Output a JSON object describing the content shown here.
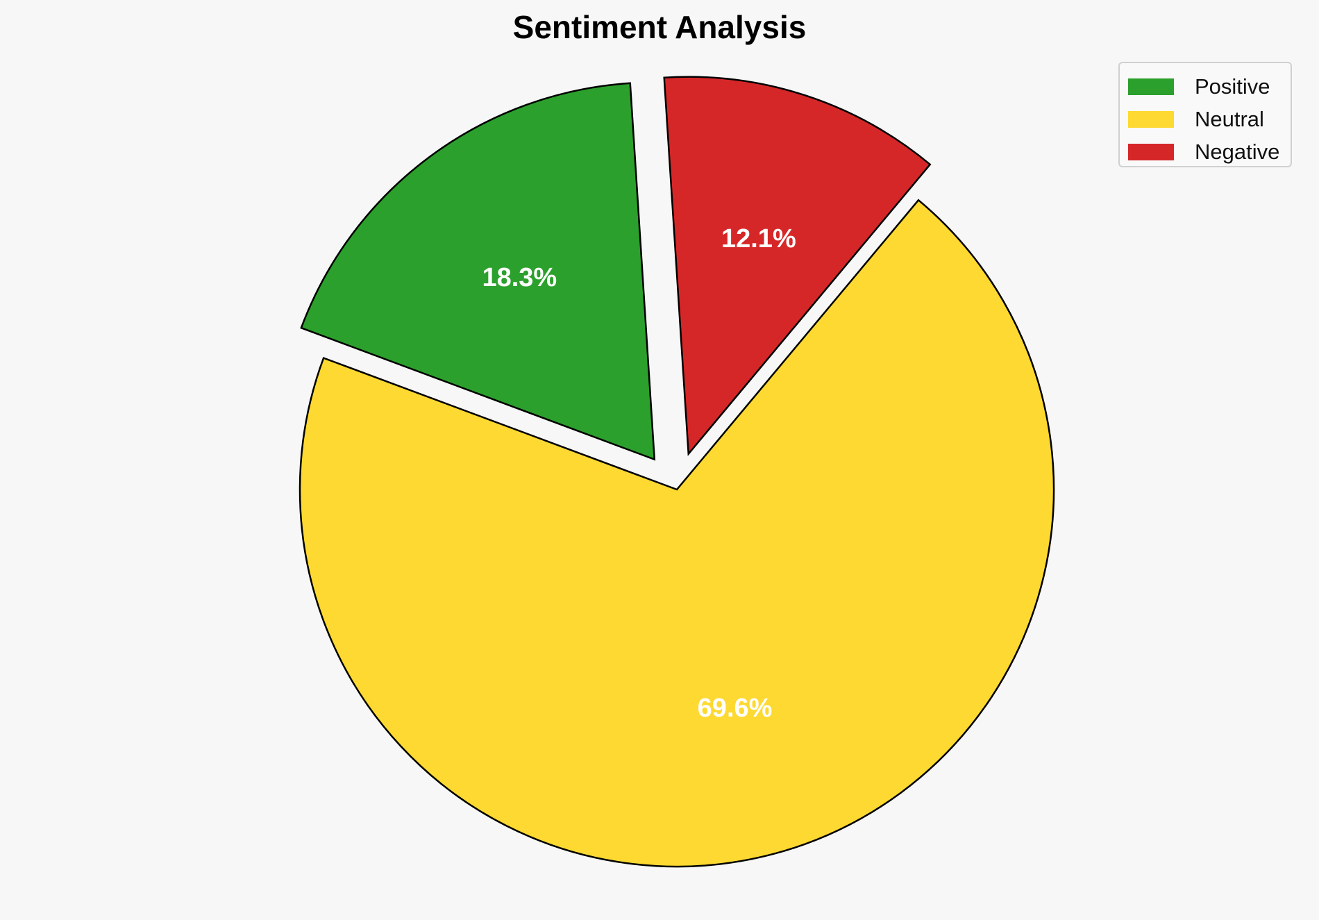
{
  "chart_data": {
    "type": "pie",
    "title": "Sentiment Analysis",
    "categories": [
      "Positive",
      "Neutral",
      "Negative"
    ],
    "values": [
      18.3,
      69.6,
      12.1
    ],
    "labels": [
      "18.3%",
      "69.6%",
      "12.1%"
    ],
    "colors": [
      "#2ca02c",
      "#fdd931",
      "#d62728"
    ],
    "exploded": [
      true,
      false,
      true
    ],
    "legend_placement": "top-right"
  }
}
